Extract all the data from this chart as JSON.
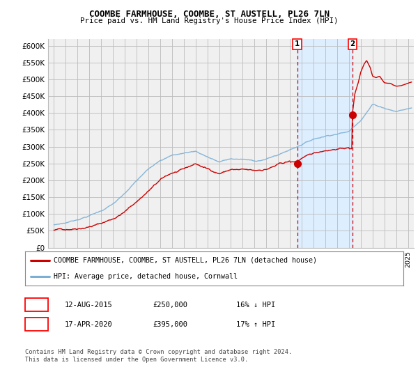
{
  "title1": "COOMBE FARMHOUSE, COOMBE, ST AUSTELL, PL26 7LN",
  "title2": "Price paid vs. HM Land Registry's House Price Index (HPI)",
  "ylim": [
    0,
    620000
  ],
  "xlim_start": 1994.5,
  "xlim_end": 2025.5,
  "sale1_x": 2015.62,
  "sale1_y": 250000,
  "sale2_x": 2020.29,
  "sale2_y": 395000,
  "red_color": "#cc0000",
  "blue_color": "#7BAFD4",
  "shaded_color": "#ddeeff",
  "grid_color": "#bbbbbb",
  "bg_color": "#f0f0f0",
  "legend_entry1": "COOMBE FARMHOUSE, COOMBE, ST AUSTELL, PL26 7LN (detached house)",
  "legend_entry2": "HPI: Average price, detached house, Cornwall",
  "note1_date": "12-AUG-2015",
  "note1_price": "£250,000",
  "note1_hpi": "16% ↓ HPI",
  "note2_date": "17-APR-2020",
  "note2_price": "£395,000",
  "note2_hpi": "17% ↑ HPI",
  "footer": "Contains HM Land Registry data © Crown copyright and database right 2024.\nThis data is licensed under the Open Government Licence v3.0."
}
